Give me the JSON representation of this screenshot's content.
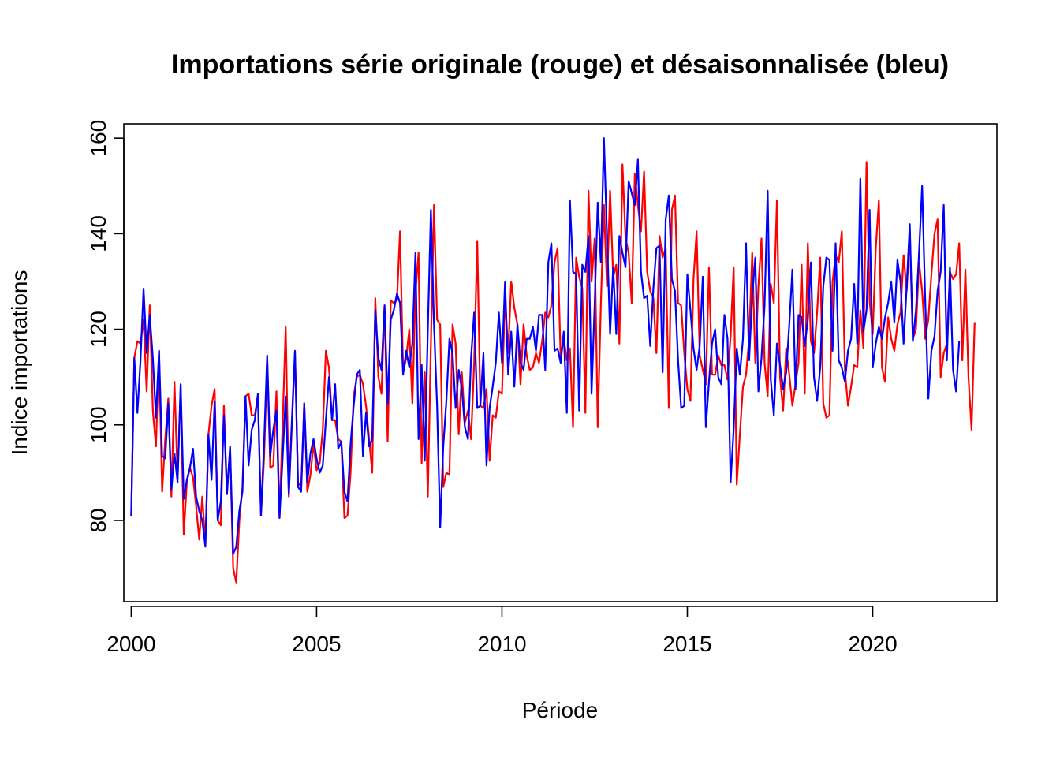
{
  "chart_data": {
    "type": "line",
    "title": "Importations série originale (rouge) et désaisonnalisée (bleu)",
    "xlabel": "Période",
    "ylabel": "Indice importations",
    "xlim": [
      1999.8,
      2023.35
    ],
    "ylim": [
      63,
      163
    ],
    "x_ticks": [
      2000,
      2005,
      2010,
      2015,
      2020
    ],
    "y_ticks": [
      80,
      100,
      120,
      140,
      160
    ],
    "grid": false,
    "x_start": 2000,
    "x_step_months": 1,
    "series": [
      {
        "color": "#ff0000",
        "values": [
          81,
          114,
          117.5,
          117,
          122,
          107,
          125,
          103,
          95.5,
          115.5,
          86,
          97,
          105.5,
          85,
          109,
          89,
          108,
          77,
          88,
          91,
          89,
          83,
          76,
          85,
          75,
          98,
          104,
          107.5,
          80,
          79,
          104,
          86,
          95,
          70,
          67,
          80,
          87,
          106,
          106.5,
          102,
          102,
          106,
          81,
          93,
          114,
          91,
          91.5,
          107,
          80.5,
          100,
          120.5,
          85,
          100,
          115,
          88,
          87,
          104.5,
          86,
          89.5,
          96,
          90.5,
          92,
          99,
          115.5,
          112,
          101,
          101,
          97,
          96.5,
          80.5,
          81,
          90,
          106,
          110,
          110.5,
          108.5,
          104,
          97,
          90,
          126.5,
          110,
          106.5,
          125,
          96.5,
          126,
          125.5,
          126,
          140.5,
          111,
          114,
          120,
          104.5,
          127.5,
          136,
          92,
          111,
          85,
          117,
          146,
          122,
          121,
          87,
          90,
          89.5,
          121,
          117,
          98,
          111,
          100.5,
          103,
          97,
          113,
          138.5,
          104,
          103.5,
          107.5,
          92.5,
          102,
          101.5,
          107,
          106.5,
          127,
          115,
          130,
          124.5,
          121,
          108.5,
          121,
          114.5,
          111.5,
          112,
          115,
          113,
          117.5,
          123.5,
          122.5,
          125,
          134,
          137,
          114,
          118,
          113.5,
          116,
          99.5,
          135,
          131,
          128.5,
          102.5,
          149,
          130,
          139,
          99.5,
          125,
          146,
          129,
          149,
          131,
          133.5,
          117,
          154.5,
          139,
          136,
          125.5,
          152.5,
          146,
          140.5,
          153,
          132,
          128,
          126.5,
          115,
          139.5,
          135,
          137,
          103.5,
          145,
          148,
          125.5,
          125,
          115,
          107.5,
          105,
          130.5,
          140.5,
          114.5,
          111.5,
          108.5,
          133,
          110.5,
          110.5,
          114.5,
          112.5,
          112.5,
          109.5,
          118.5,
          133,
          87.5,
          98,
          108,
          110.5,
          118,
          136,
          113,
          129,
          139,
          113,
          106,
          129.5,
          125.5,
          147,
          110,
          103,
          116,
          110.5,
          104,
          108.5,
          113,
          133.5,
          106.5,
          138,
          117.5,
          115,
          123.5,
          135,
          104.5,
          101.5,
          102,
          130,
          135.5,
          134,
          140.5,
          111.5,
          104,
          108,
          112.5,
          112,
          124,
          116,
          155,
          126,
          119,
          137,
          147,
          112,
          109,
          122.5,
          118,
          115.5,
          121,
          123.5,
          135.5,
          128,
          140,
          118,
          120,
          134,
          128,
          118,
          122,
          131.5,
          140,
          143,
          110,
          115,
          117,
          132,
          130.5,
          131.5,
          138,
          113.5,
          132.5,
          110,
          99,
          121.5
        ]
      },
      {
        "color": "#0000ff",
        "values": [
          81,
          114,
          102.5,
          113.5,
          128.5,
          115,
          123,
          114,
          101.5,
          115.5,
          93.5,
          93,
          104.5,
          86.5,
          94,
          88,
          108.5,
          84.5,
          88.5,
          91,
          95,
          85,
          82,
          80,
          74.5,
          98,
          88.5,
          105,
          80,
          84,
          102,
          85.5,
          95.5,
          73,
          74.5,
          82,
          86,
          106,
          91.5,
          99,
          101,
          106.5,
          81,
          96,
          114.5,
          93.5,
          99,
          103,
          80.5,
          93,
          106,
          85.5,
          101,
          115.5,
          87,
          86,
          104.5,
          88,
          94,
          97,
          93,
          90,
          91.5,
          101,
          110,
          101,
          108.5,
          95,
          96.5,
          86,
          84,
          96,
          104,
          110.5,
          111.5,
          93.5,
          102.5,
          95.5,
          97,
          124,
          114,
          111.5,
          125,
          104.5,
          122,
          124,
          127.5,
          125.5,
          110.5,
          115.5,
          112,
          117,
          136,
          97,
          112.5,
          92.5,
          120,
          145,
          121,
          104,
          78.5,
          95.5,
          105,
          118,
          115,
          103.5,
          111.5,
          107.5,
          99.5,
          97,
          114,
          123.5,
          103.5,
          104,
          115,
          91.5,
          103.5,
          108,
          113,
          123.5,
          113,
          130,
          110.5,
          119.5,
          108,
          121,
          113,
          111.5,
          118,
          118,
          120.5,
          115.5,
          123,
          123,
          111.5,
          134,
          138,
          115.5,
          116,
          113,
          119.5,
          102.5,
          147,
          132,
          131.5,
          103,
          133.5,
          132,
          139.5,
          106.5,
          125,
          146.5,
          134,
          160,
          139.5,
          119,
          133,
          119,
          139.5,
          136,
          133,
          151,
          148.5,
          146,
          155.5,
          132,
          126.5,
          127,
          116.5,
          128.5,
          137,
          137.5,
          111,
          143,
          148,
          130.5,
          128,
          113.5,
          103.5,
          104,
          131.5,
          124,
          116,
          111.5,
          116.5,
          131,
          99.5,
          109,
          117,
          120,
          110,
          108.5,
          123,
          118,
          88,
          99,
          116,
          110.5,
          118,
          138,
          113.5,
          127,
          135,
          107,
          114,
          125,
          149,
          109.5,
          102,
          117,
          112.5,
          107.5,
          111,
          121,
          132.5,
          107.5,
          123,
          122.5,
          116.5,
          122,
          134,
          110,
          105,
          112,
          129,
          135,
          134.5,
          115.5,
          138,
          113.5,
          112,
          109,
          115.5,
          118,
          129.5,
          117,
          151.5,
          119.5,
          124,
          145,
          112,
          117,
          120.5,
          118,
          122.5,
          125.5,
          130,
          121.5,
          134.5,
          130,
          117,
          129,
          142,
          117.5,
          124,
          136,
          150,
          126,
          105.5,
          115.5,
          118.5,
          128,
          132,
          146,
          113.5,
          133,
          111.5,
          107,
          117.5
        ]
      }
    ]
  }
}
